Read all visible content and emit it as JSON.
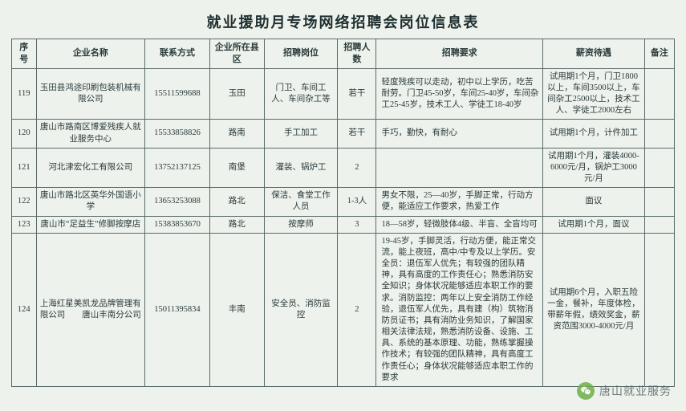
{
  "title": "就业援助月专场网络招聘会岗位信息表",
  "watermark": "唐山就业服务",
  "columns": [
    "序号",
    "企业名称",
    "联系方式",
    "企业所在县区",
    "招聘岗位",
    "招聘人数",
    "招聘要求",
    "薪资待遇",
    "备注"
  ],
  "rows": [
    {
      "seq": "119",
      "company": "玉田县鸿途印刷包装机械有限公司",
      "contact": "15511599688",
      "area": "玉田",
      "job": "门卫、车间工人、车间杂工等",
      "count": "若干",
      "req": "轻度残疾可以走动，初中以上学历，吃苦耐劳。门卫45-50岁，车间25-40岁，车间杂工25-45岁，技术工人、学徒工18-40岁",
      "salary": "试用期1个月，门卫1800以上，车间3500以上，车间杂工2500以上，技术工人、学徒工2000左右",
      "remark": ""
    },
    {
      "seq": "120",
      "company": "唐山市路南区博爱残疾人就业服务中心",
      "contact": "15533858826",
      "area": "路南",
      "job": "手工加工",
      "count": "若干",
      "req": "手巧，勤快，有耐心",
      "salary": "试用期1个月，计件加工",
      "remark": ""
    },
    {
      "seq": "121",
      "company": "河北津宏化工有限公司",
      "contact": "13752137125",
      "area": "南堡",
      "job": "灌装、锅炉工",
      "count": "2",
      "req": "",
      "salary": "试用期1个月，灌装4000-6000元/月，锅炉工3000元/月",
      "remark": ""
    },
    {
      "seq": "122",
      "company": "唐山市路北区英华外国语小学",
      "contact": "13653253088",
      "area": "路北",
      "job": "保洁、食堂工作人员",
      "count": "1-3人",
      "req": "男女不限，25—40岁，手脚正常，行动方便，能适应工作要求，热爱工作",
      "salary": "面议",
      "remark": ""
    },
    {
      "seq": "123",
      "company": "唐山市“足益生”修脚按摩店",
      "contact": "15383853670",
      "area": "路北",
      "job": "按摩师",
      "count": "3",
      "req": "18—58岁，轻微肢体4级、半盲、全盲均可",
      "salary": "试用期1个月，面议",
      "remark": ""
    },
    {
      "seq": "124",
      "company": "上海红星美凯龙品牌管理有限公司　　唐山丰南分公司",
      "contact": "15011395834",
      "area": "丰南",
      "job": "安全员、消防监控",
      "count": "2",
      "req": "19-45岁，手脚灵活，行动方便，能正常交流，能上夜班，高中/中专及以上学历。安全员：退伍军人优先；有较强的团队精神，具有高度的工作责任心；熟悉消防安全知识；身体状况能够适应本职工作的要求。消防监控：两年以上安全消防工作经验，退伍军人优先，具有建（构）筑物消防员证书；具有消防业务知识，了解国家相关法律法规，熟悉消防设备、设施、工具、系统的基本原理、功能，熟练掌握操作技术；有较强的团队精神，具有高度工作责任心；身体状况能够适应本职工作的要求",
      "salary": "试用期6个月，入职五险一金，餐补，年度体检，带薪年假，绩效奖金，薪资范围3000-4000元/月",
      "remark": ""
    }
  ],
  "style": {
    "page_bg": "#eef2ed",
    "border_color": "#5a6a6a",
    "text_color": "#2a3a3a",
    "title_fontsize": 18,
    "cell_fontsize": 10.5,
    "watermark_color": "#5a6668",
    "wechat_icon_bg": "#6fb04a"
  }
}
